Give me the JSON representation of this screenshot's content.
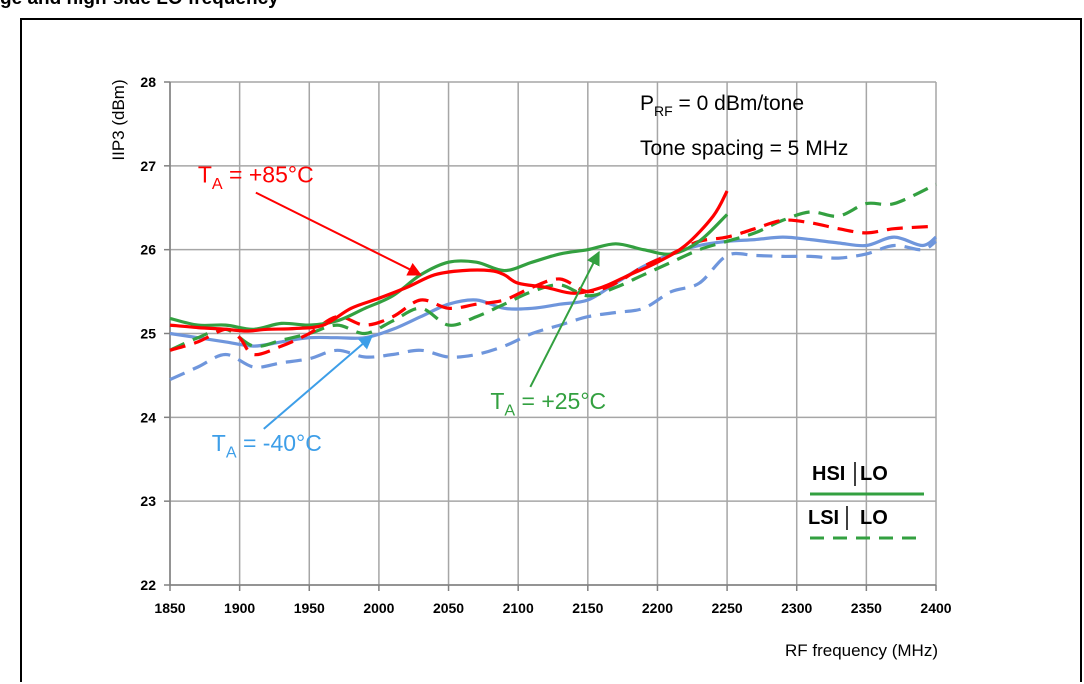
{
  "heading_fragment": "ge and high-side LO frequency",
  "chart_data": {
    "type": "line",
    "title": "",
    "xlabel": "RF frequency (MHz)",
    "ylabel": "IIP3 (dBm)",
    "xlim": [
      1850,
      2400
    ],
    "ylim": [
      22,
      28
    ],
    "xticks": [
      "1850",
      "1900",
      "1950",
      "2000",
      "2050",
      "2100",
      "2150",
      "2200",
      "2250",
      "2300",
      "2350",
      "2400"
    ],
    "yticks": [
      "22",
      "23",
      "24",
      "25",
      "26",
      "27",
      "28"
    ],
    "grid": true,
    "conditions": {
      "p_rf_main": "P",
      "p_rf_sub": "RF",
      "p_rf_rest": " = 0 dBm/tone",
      "tone_spacing": "Tone spacing = 5 MHz"
    },
    "temperature_labels": [
      {
        "main": "T",
        "sub": "A",
        "rest": " = +85°C",
        "color": "#ff0000",
        "at": [
          1870,
          26.8
        ],
        "arrow_to": [
          2030,
          25.7
        ]
      },
      {
        "main": "T",
        "sub": "A",
        "rest": " = +25°C",
        "color": "#33a040",
        "at": [
          2080,
          24.1
        ],
        "arrow_to": [
          2158,
          25.97
        ]
      },
      {
        "main": "T",
        "sub": "A",
        "rest": " = -40°C",
        "color": "#3d9ee8",
        "at": [
          1880,
          23.6
        ],
        "arrow_to": [
          1995,
          24.97
        ]
      }
    ],
    "legend": {
      "placement": "bottom-right",
      "entries": [
        {
          "label_a": "HSI",
          "label_b": "LO",
          "style": "solid"
        },
        {
          "label_a": "LSI",
          "label_b": "LO",
          "style": "dashed"
        }
      ],
      "color": "#33a040"
    },
    "series": [
      {
        "temp": "+85°C",
        "lo": "HSI LO",
        "color": "#ff0000",
        "style": "solid",
        "x": [
          1850,
          1870,
          1890,
          1905,
          1920,
          1940,
          1960,
          1980,
          2000,
          2020,
          2040,
          2060,
          2080,
          2090,
          2100,
          2120,
          2140,
          2160,
          2180,
          2200,
          2220,
          2240,
          2250
        ],
        "y": [
          25.1,
          25.07,
          25.05,
          25.03,
          25.05,
          25.06,
          25.1,
          25.3,
          25.42,
          25.55,
          25.7,
          25.75,
          25.75,
          25.7,
          25.6,
          25.55,
          25.48,
          25.55,
          25.7,
          25.85,
          26.05,
          26.4,
          26.7
        ]
      },
      {
        "temp": "+85°C",
        "lo": "LSI LO",
        "color": "#ff0000",
        "style": "dashed",
        "x": [
          1850,
          1870,
          1890,
          1900,
          1910,
          1930,
          1950,
          1970,
          1990,
          2010,
          2030,
          2050,
          2070,
          2090,
          2110,
          2130,
          2150,
          2170,
          2190,
          2210,
          2230,
          2250,
          2270,
          2290,
          2310,
          2330,
          2350,
          2370,
          2400
        ],
        "y": [
          24.8,
          24.9,
          25.05,
          24.95,
          24.75,
          24.85,
          25.0,
          25.2,
          25.1,
          25.2,
          25.4,
          25.3,
          25.35,
          25.4,
          25.55,
          25.65,
          25.5,
          25.6,
          25.8,
          25.95,
          26.1,
          26.15,
          26.25,
          26.35,
          26.32,
          26.25,
          26.2,
          26.25,
          26.28
        ]
      },
      {
        "temp": "+25°C",
        "lo": "HSI LO",
        "color": "#33a040",
        "style": "solid",
        "x": [
          1850,
          1870,
          1890,
          1910,
          1930,
          1950,
          1970,
          1990,
          2010,
          2030,
          2050,
          2070,
          2090,
          2110,
          2130,
          2150,
          2170,
          2190,
          2210,
          2230,
          2250
        ],
        "y": [
          25.18,
          25.1,
          25.1,
          25.05,
          25.12,
          25.1,
          25.15,
          25.3,
          25.45,
          25.7,
          25.85,
          25.85,
          25.75,
          25.85,
          25.95,
          26.0,
          26.07,
          26.0,
          25.95,
          26.1,
          26.42
        ]
      },
      {
        "temp": "+25°C",
        "lo": "LSI LO",
        "color": "#33a040",
        "style": "dashed",
        "x": [
          1850,
          1870,
          1890,
          1910,
          1930,
          1950,
          1970,
          1990,
          2010,
          2030,
          2050,
          2070,
          2090,
          2110,
          2130,
          2150,
          2170,
          2190,
          2210,
          2230,
          2250,
          2270,
          2290,
          2310,
          2330,
          2350,
          2370,
          2400
        ],
        "y": [
          24.8,
          24.95,
          25.05,
          24.85,
          24.92,
          25.0,
          25.1,
          25.0,
          25.15,
          25.3,
          25.1,
          25.2,
          25.35,
          25.5,
          25.58,
          25.45,
          25.55,
          25.7,
          25.85,
          26.0,
          26.1,
          26.2,
          26.35,
          26.45,
          26.4,
          26.55,
          26.55,
          26.78
        ]
      },
      {
        "temp": "-40°C",
        "lo": "HSI LO",
        "color": "#6f96dc",
        "style": "solid",
        "x": [
          1850,
          1870,
          1890,
          1910,
          1930,
          1950,
          1970,
          1990,
          2010,
          2030,
          2050,
          2070,
          2090,
          2110,
          2130,
          2150,
          2170,
          2190,
          2210,
          2230,
          2250,
          2270,
          2290,
          2310,
          2330,
          2350,
          2370,
          2390,
          2400
        ],
        "y": [
          25.0,
          24.95,
          24.9,
          24.85,
          24.9,
          24.95,
          24.95,
          24.95,
          25.05,
          25.2,
          25.35,
          25.4,
          25.3,
          25.3,
          25.35,
          25.4,
          25.6,
          25.8,
          25.95,
          26.05,
          26.1,
          26.12,
          26.15,
          26.12,
          26.08,
          26.05,
          26.15,
          26.05,
          26.15
        ]
      },
      {
        "temp": "-40°C",
        "lo": "LSI LO",
        "color": "#6f96dc",
        "style": "dashed",
        "x": [
          1850,
          1870,
          1890,
          1910,
          1930,
          1950,
          1970,
          1990,
          2010,
          2030,
          2050,
          2070,
          2090,
          2110,
          2130,
          2150,
          2170,
          2190,
          2210,
          2230,
          2250,
          2270,
          2290,
          2310,
          2330,
          2350,
          2370,
          2390,
          2400
        ],
        "y": [
          24.45,
          24.6,
          24.75,
          24.6,
          24.65,
          24.7,
          24.8,
          24.72,
          24.75,
          24.8,
          24.72,
          24.75,
          24.85,
          25.0,
          25.1,
          25.2,
          25.25,
          25.3,
          25.5,
          25.6,
          25.93,
          25.93,
          25.92,
          25.92,
          25.9,
          25.95,
          26.05,
          26.0,
          26.1
        ]
      }
    ]
  }
}
